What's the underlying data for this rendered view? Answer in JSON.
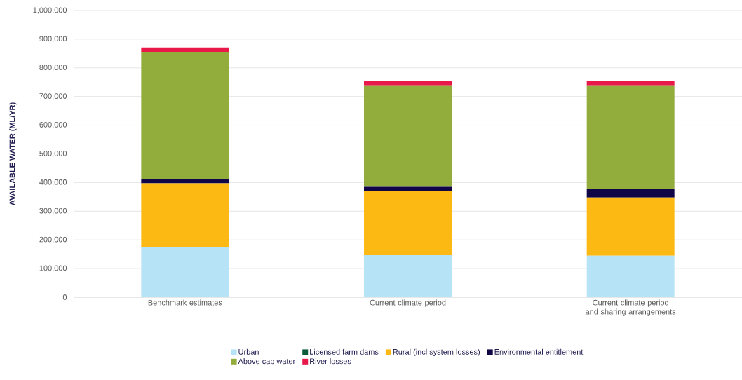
{
  "chart_data": {
    "type": "bar",
    "stacked": true,
    "ylabel": "AVAILABLE WATER (ML/YR)",
    "categories": [
      "Benchmark estimates",
      "Current climate period",
      "Current climate period and sharing arrangements"
    ],
    "series": [
      {
        "name": "Urban",
        "color": "#b7e3f7",
        "values": [
          175000,
          148000,
          145000
        ]
      },
      {
        "name": "Licensed farm dams",
        "color": "#0b5a3a",
        "values": [
          null,
          null,
          null
        ]
      },
      {
        "name": "Rural (incl system losses)",
        "color": "#fdb913",
        "values": [
          222000,
          222000,
          203000
        ]
      },
      {
        "name": "Environmental entitlement",
        "color": "#100546",
        "values": [
          14000,
          15000,
          29000
        ]
      },
      {
        "name": "Above cap water",
        "color": "#93ad3c",
        "values": [
          445000,
          354000,
          362000
        ]
      },
      {
        "name": "River losses",
        "color": "#e8194a",
        "values": [
          15000,
          14000,
          14000
        ]
      }
    ],
    "ylim": [
      0,
      1000000
    ],
    "yticks": [
      0,
      {
        "value": 100000,
        "label": "100,000"
      },
      {
        "value": 200000,
        "label": "200,000"
      },
      {
        "value": 300000,
        "label": "300,000"
      },
      {
        "value": 400000,
        "label": "400,000"
      },
      {
        "value": 500000,
        "label": "500,000"
      },
      {
        "value": 600000,
        "label": "600,000"
      },
      {
        "value": 700000,
        "label": "700,000"
      },
      {
        "value": 800000,
        "label": "800,000"
      },
      {
        "value": 900000,
        "label": "900,000"
      },
      {
        "value": 1000000,
        "label": "1,000,000"
      }
    ],
    "grid": "y",
    "legend": "bottom"
  }
}
